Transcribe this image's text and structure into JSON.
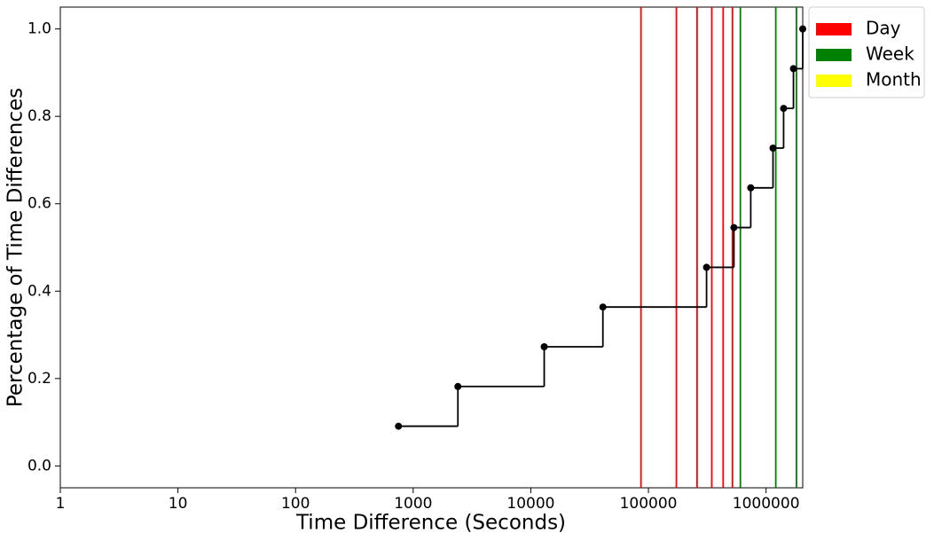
{
  "chart_data": {
    "type": "step",
    "x_label": "Time Difference (Seconds)",
    "y_label": "Percentage of Time Differences",
    "x": [
      750,
      2400,
      13000,
      41000,
      312000,
      533000,
      741000,
      1146000,
      1410000,
      1710000,
      2050000
    ],
    "series": [
      {
        "name": "Percentage of Time Differences",
        "color": "#000000",
        "values": [
          0.0909,
          0.1818,
          0.2727,
          0.3636,
          0.4545,
          0.5455,
          0.6364,
          0.7273,
          0.8182,
          0.9091,
          1.0
        ]
      }
    ],
    "vlines": [
      {
        "name": "Day",
        "color": "#ff0000",
        "values": [
          86400,
          172800,
          259200,
          345600,
          432000,
          518400
        ]
      },
      {
        "name": "Week",
        "color": "#008000",
        "values": [
          604800,
          1209600,
          1814400
        ]
      },
      {
        "name": "Month",
        "color": "#ffff00",
        "values": []
      }
    ],
    "xscale": "log",
    "xlim": [
      1,
      2050000
    ],
    "xticks": [
      1,
      10,
      100,
      1000,
      10000,
      100000,
      1000000
    ],
    "ylim": [
      -0.05,
      1.05
    ],
    "yticks": [
      {
        "value": 0,
        "label": "0.0"
      },
      {
        "value": 0.2,
        "label": "0.2"
      },
      {
        "value": 0.4,
        "label": "0.4"
      },
      {
        "value": 0.6,
        "label": "0.6"
      },
      {
        "value": 0.8,
        "label": "0.8"
      },
      {
        "value": 1,
        "label": "1.0"
      }
    ],
    "legend": "upper right outside"
  }
}
